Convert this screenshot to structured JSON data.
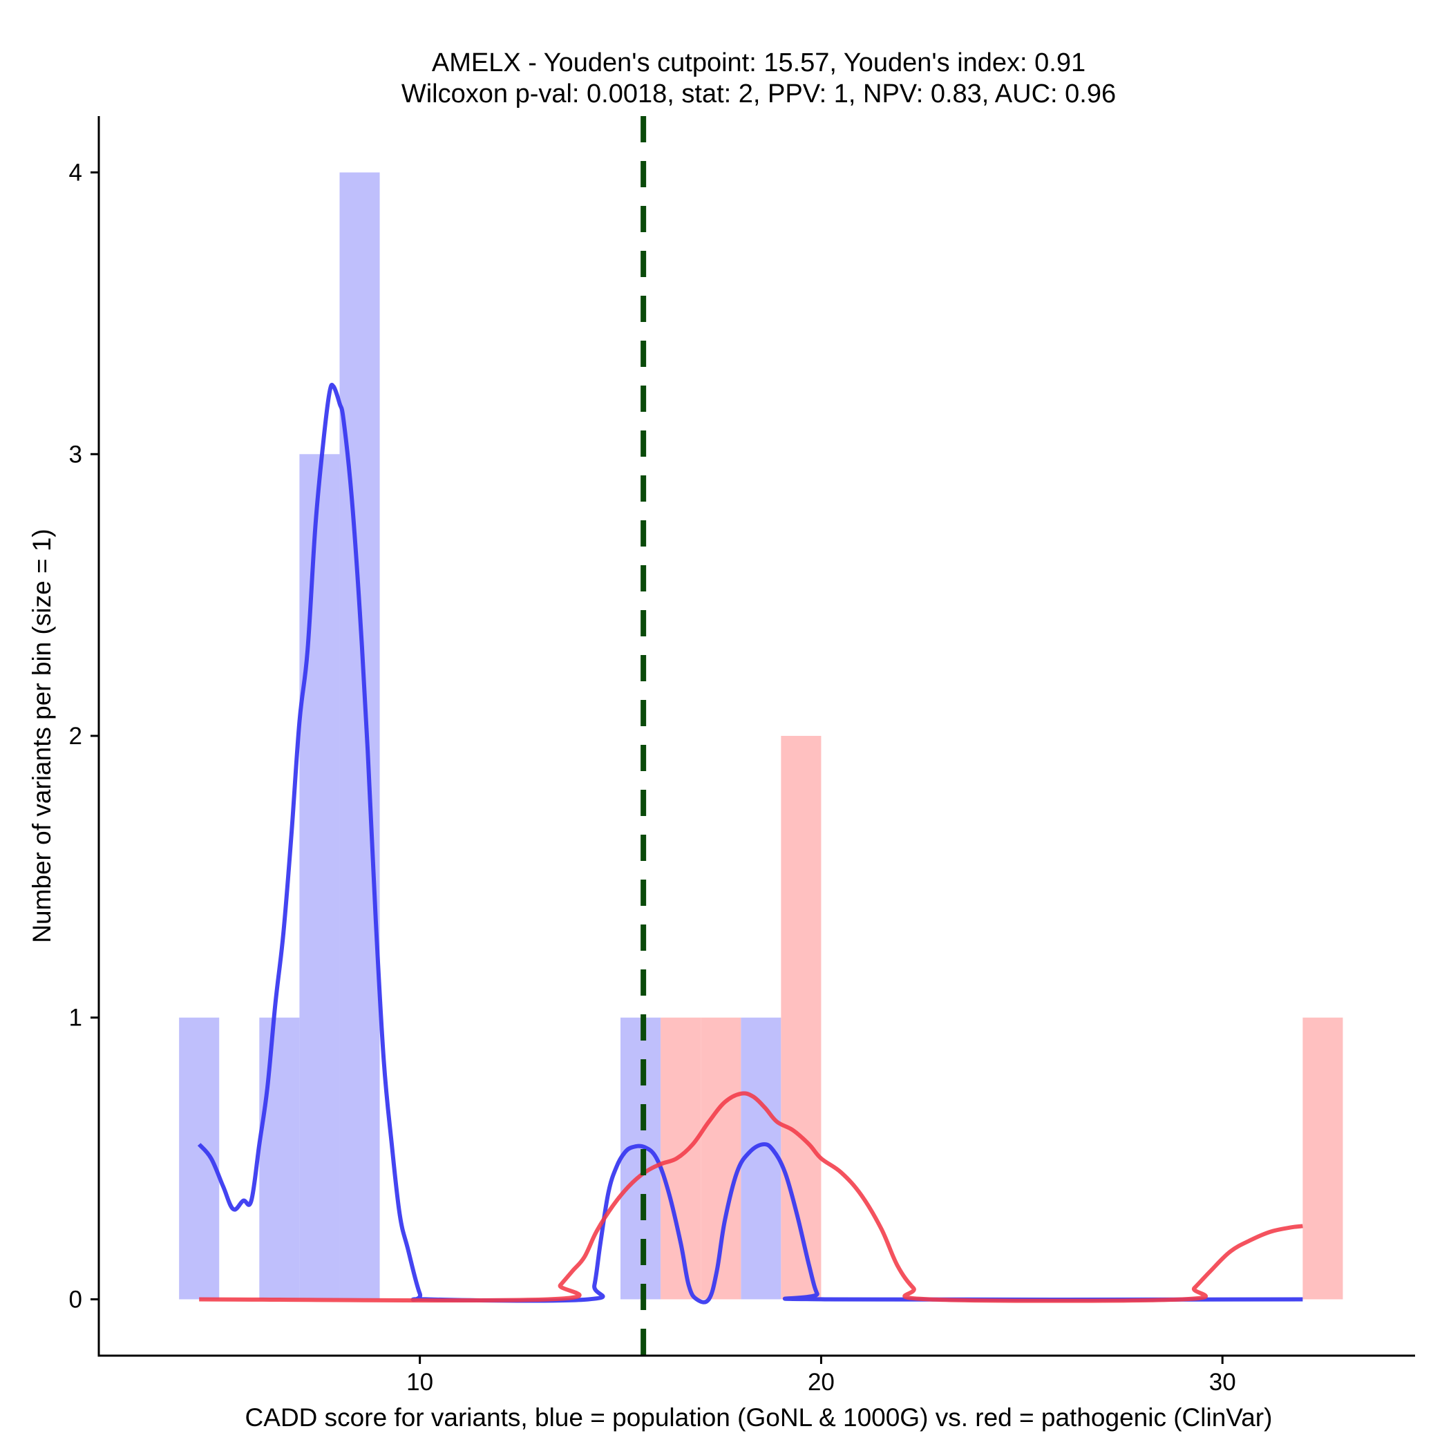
{
  "chart_data": {
    "type": "histogram-density",
    "title": "AMELX - Youden's cutpoint: 15.57, Youden's index: 0.91",
    "subtitle": "Wilcoxon p-val: 0.0018, stat: 2, PPV: 1, NPV: 0.83, AUC: 0.96",
    "xlabel": "CADD score for variants, blue = population (GoNL & 1000G) vs. red = pathogenic (ClinVar)",
    "ylabel": "Number of variants per bin (size = 1)",
    "xlim": [
      2.0,
      34.8
    ],
    "ylim": [
      -0.2,
      4.2
    ],
    "x_ticks": [
      10,
      20,
      30
    ],
    "y_ticks": [
      0,
      1,
      2,
      3,
      4
    ],
    "grid": false,
    "legend": "none",
    "colors": {
      "population_bar": "#bfbffc",
      "pathogenic_bar": "#ffc0c0",
      "population_line": "#3a3af0",
      "pathogenic_line": "#f23a48",
      "cutpoint_line": "#0a4a0a"
    },
    "cutpoint": 15.57,
    "bin_width": 1,
    "population_bins": [
      {
        "x0": 4,
        "x1": 5,
        "count": 1
      },
      {
        "x0": 6,
        "x1": 7,
        "count": 1
      },
      {
        "x0": 7,
        "x1": 8,
        "count": 3
      },
      {
        "x0": 8,
        "x1": 9,
        "count": 4
      },
      {
        "x0": 15,
        "x1": 16,
        "count": 1
      },
      {
        "x0": 18,
        "x1": 19,
        "count": 1
      }
    ],
    "pathogenic_bins": [
      {
        "x0": 16,
        "x1": 17,
        "count": 1
      },
      {
        "x0": 17,
        "x1": 18,
        "count": 1
      },
      {
        "x0": 19,
        "x1": 20,
        "count": 2
      },
      {
        "x0": 32,
        "x1": 33,
        "count": 1
      }
    ],
    "population_density": [
      [
        4.5,
        0.55
      ],
      [
        4.8,
        0.5
      ],
      [
        5.1,
        0.4
      ],
      [
        5.35,
        0.32
      ],
      [
        5.6,
        0.35
      ],
      [
        5.8,
        0.35
      ],
      [
        6.0,
        0.55
      ],
      [
        6.2,
        0.75
      ],
      [
        6.4,
        1.05
      ],
      [
        6.6,
        1.3
      ],
      [
        6.8,
        1.65
      ],
      [
        7.0,
        2.05
      ],
      [
        7.2,
        2.3
      ],
      [
        7.4,
        2.75
      ],
      [
        7.6,
        3.05
      ],
      [
        7.75,
        3.22
      ],
      [
        7.85,
        3.24
      ],
      [
        8.0,
        3.18
      ],
      [
        8.1,
        3.12
      ],
      [
        8.3,
        2.85
      ],
      [
        8.5,
        2.45
      ],
      [
        8.7,
        1.95
      ],
      [
        8.9,
        1.35
      ],
      [
        9.1,
        0.85
      ],
      [
        9.3,
        0.55
      ],
      [
        9.5,
        0.3
      ],
      [
        9.7,
        0.18
      ],
      [
        10.0,
        0.02
      ],
      [
        10.2,
        0.0
      ],
      [
        14.2,
        0.0
      ],
      [
        14.35,
        0.05
      ],
      [
        14.5,
        0.2
      ],
      [
        14.7,
        0.38
      ],
      [
        14.9,
        0.47
      ],
      [
        15.1,
        0.52
      ],
      [
        15.3,
        0.54
      ],
      [
        15.6,
        0.54
      ],
      [
        15.9,
        0.5
      ],
      [
        16.2,
        0.38
      ],
      [
        16.5,
        0.2
      ],
      [
        16.7,
        0.05
      ],
      [
        16.9,
        0.0
      ],
      [
        17.2,
        0.0
      ],
      [
        17.4,
        0.1
      ],
      [
        17.6,
        0.28
      ],
      [
        17.9,
        0.45
      ],
      [
        18.2,
        0.52
      ],
      [
        18.55,
        0.55
      ],
      [
        18.8,
        0.53
      ],
      [
        19.1,
        0.45
      ],
      [
        19.4,
        0.3
      ],
      [
        19.7,
        0.12
      ],
      [
        19.9,
        0.02
      ],
      [
        20.1,
        0.0
      ],
      [
        32.0,
        0.0
      ]
    ],
    "pathogenic_density": [
      [
        4.5,
        0.0
      ],
      [
        13.2,
        0.0
      ],
      [
        13.5,
        0.05
      ],
      [
        13.8,
        0.1
      ],
      [
        14.1,
        0.15
      ],
      [
        14.4,
        0.24
      ],
      [
        14.8,
        0.33
      ],
      [
        15.2,
        0.4
      ],
      [
        15.6,
        0.45
      ],
      [
        16.0,
        0.48
      ],
      [
        16.4,
        0.5
      ],
      [
        16.8,
        0.55
      ],
      [
        17.2,
        0.63
      ],
      [
        17.6,
        0.7
      ],
      [
        18.0,
        0.73
      ],
      [
        18.3,
        0.72
      ],
      [
        18.6,
        0.68
      ],
      [
        18.9,
        0.63
      ],
      [
        19.3,
        0.6
      ],
      [
        19.7,
        0.55
      ],
      [
        20.0,
        0.5
      ],
      [
        20.5,
        0.45
      ],
      [
        21.0,
        0.37
      ],
      [
        21.5,
        0.25
      ],
      [
        21.9,
        0.12
      ],
      [
        22.3,
        0.04
      ],
      [
        22.7,
        0.0
      ],
      [
        29.0,
        0.0
      ],
      [
        29.3,
        0.04
      ],
      [
        29.7,
        0.1
      ],
      [
        30.2,
        0.17
      ],
      [
        30.7,
        0.21
      ],
      [
        31.2,
        0.24
      ],
      [
        31.7,
        0.255
      ],
      [
        32.0,
        0.26
      ]
    ]
  }
}
